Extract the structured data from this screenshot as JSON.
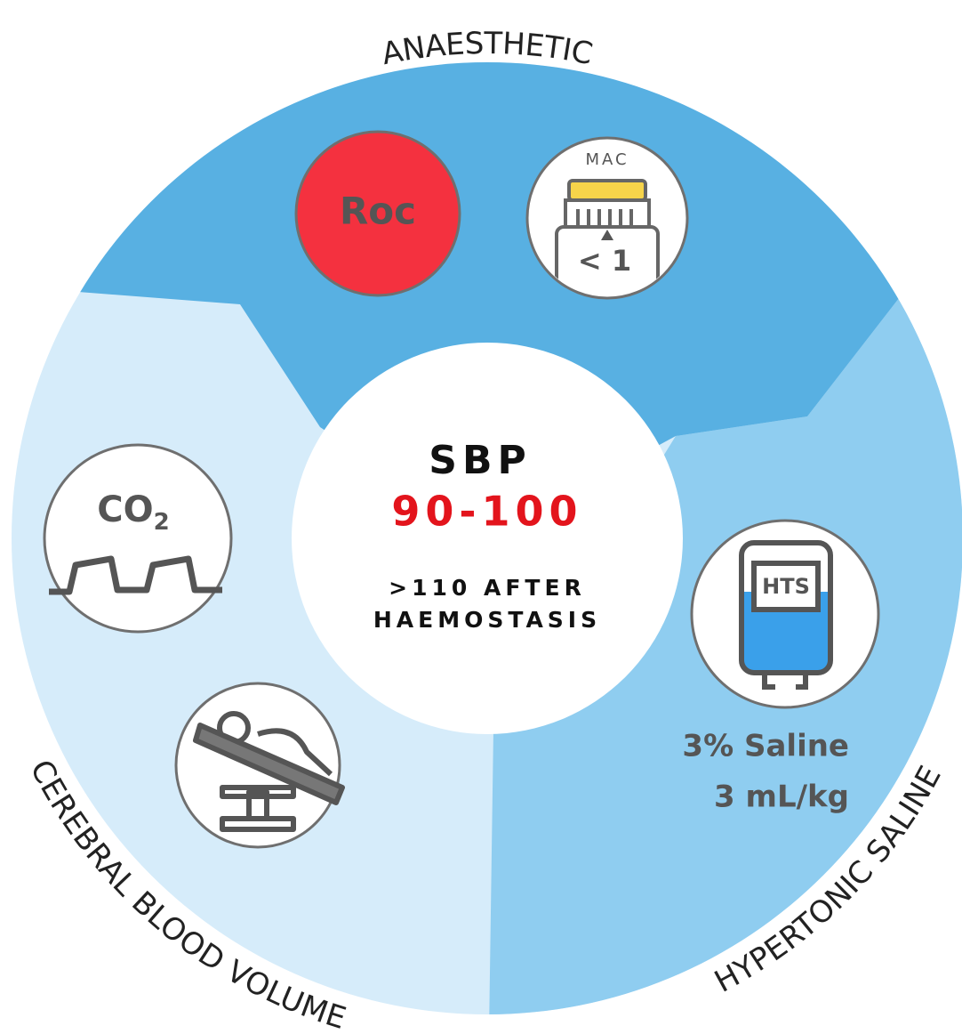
{
  "segments": {
    "top": {
      "label": "ANAESTHETIC",
      "drug": "Roc",
      "gauge_label": "MAC",
      "gauge_value": "< 1"
    },
    "left": {
      "label": "CEREBRAL BLOOD VOLUME",
      "gas": "CO",
      "gas_subscript": "2"
    },
    "right": {
      "label": "HYPERTONIC SALINE",
      "bag_label": "HTS",
      "dose_line1": "3% Saline",
      "dose_line2": "3 mL/kg"
    }
  },
  "center": {
    "title": "SBP",
    "target": "90-100",
    "note_line1": ">110 AFTER",
    "note_line2": "HAEMOSTASIS"
  }
}
